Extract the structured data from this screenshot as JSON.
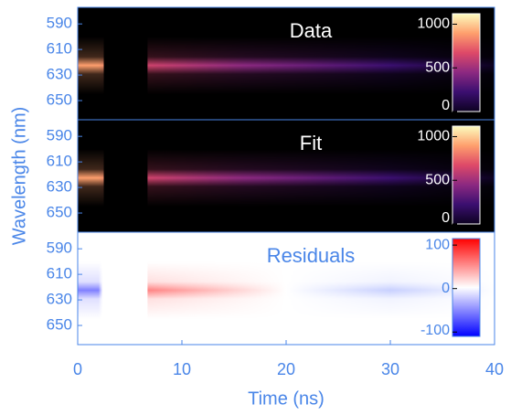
{
  "chart_data": [
    {
      "type": "heatmap",
      "title": "Data",
      "title_color": "#ffffff",
      "background": "#000000",
      "colormap": [
        "#0d0221",
        "#3b0f70",
        "#8c2981",
        "#de4968",
        "#fe9f6d",
        "#fcfdbf"
      ],
      "ylim": [
        577,
        665
      ],
      "yticks": [
        590,
        610,
        630,
        650
      ],
      "colorbar_lim": [
        0,
        1120
      ],
      "colorbar_ticks": [
        0,
        500,
        1000
      ]
    },
    {
      "type": "heatmap",
      "title": "Fit",
      "title_color": "#ffffff",
      "background": "#000000",
      "colormap": [
        "#0d0221",
        "#3b0f70",
        "#8c2981",
        "#de4968",
        "#fe9f6d",
        "#fcfdbf"
      ],
      "ylabel": "Wavelength (nm)",
      "ylim": [
        577,
        665
      ],
      "yticks": [
        590,
        610,
        630,
        650
      ],
      "colorbar_lim": [
        0,
        1120
      ],
      "colorbar_ticks": [
        0,
        500,
        1000
      ]
    },
    {
      "type": "heatmap",
      "title": "Residuals",
      "title_color": "#4a86e8",
      "background": "#ffffff",
      "colormap": [
        "#0000ff",
        "#8080ff",
        "#ffffff",
        "#ff8080",
        "#ff0000"
      ],
      "ylim": [
        577,
        665
      ],
      "yticks": [
        590,
        610,
        630,
        650
      ],
      "colorbar_lim": [
        -110,
        115
      ],
      "colorbar_ticks": [
        -100,
        0,
        100
      ],
      "xlabel": "Time (ns)",
      "xlim": [
        0,
        40
      ],
      "xticks": [
        0,
        10,
        20,
        30,
        40
      ]
    }
  ]
}
